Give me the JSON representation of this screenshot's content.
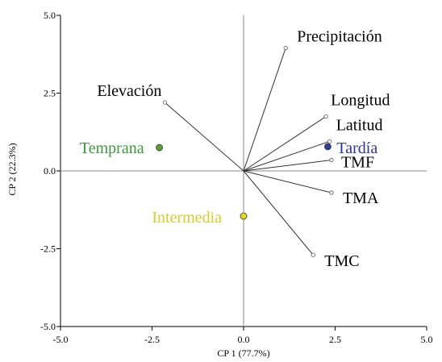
{
  "chart_data": {
    "type": "scatter",
    "subtype": "biplot",
    "title": "",
    "xlabel": "CP 1 (77.7%)",
    "ylabel": "CP 2 (22.3%)",
    "xlim": [
      -5.0,
      5.0
    ],
    "ylim": [
      -5.0,
      5.0
    ],
    "xticks": [
      "-5.0",
      "-2.5",
      "0.0",
      "2.5",
      "5.0"
    ],
    "yticks": [
      "-5.0",
      "-2.5",
      "0.0",
      "2.5",
      "5.0"
    ],
    "grid": false,
    "vectors": [
      {
        "name": "Precipitación",
        "x": 1.15,
        "y": 3.95
      },
      {
        "name": "Elevación",
        "x": -2.15,
        "y": 2.2
      },
      {
        "name": "Longitud",
        "x": 2.25,
        "y": 1.75
      },
      {
        "name": "Latitud",
        "x": 2.35,
        "y": 0.95
      },
      {
        "name": "TMF",
        "x": 2.4,
        "y": 0.35
      },
      {
        "name": "TMA",
        "x": 2.4,
        "y": -0.7
      },
      {
        "name": "TMC",
        "x": 1.9,
        "y": -2.7
      }
    ],
    "groups": [
      {
        "name": "Temprana",
        "x": -2.3,
        "y": 0.75,
        "color": "#5b9e3a",
        "label_color": "#3a9a3a"
      },
      {
        "name": "Tardía",
        "x": 2.3,
        "y": 0.78,
        "color": "#2e3f9c",
        "label_color": "#2b3590"
      },
      {
        "name": "Intermedia",
        "x": 0.0,
        "y": -1.45,
        "color": "#e8d81a",
        "label_color": "#d6cc2a"
      }
    ]
  }
}
